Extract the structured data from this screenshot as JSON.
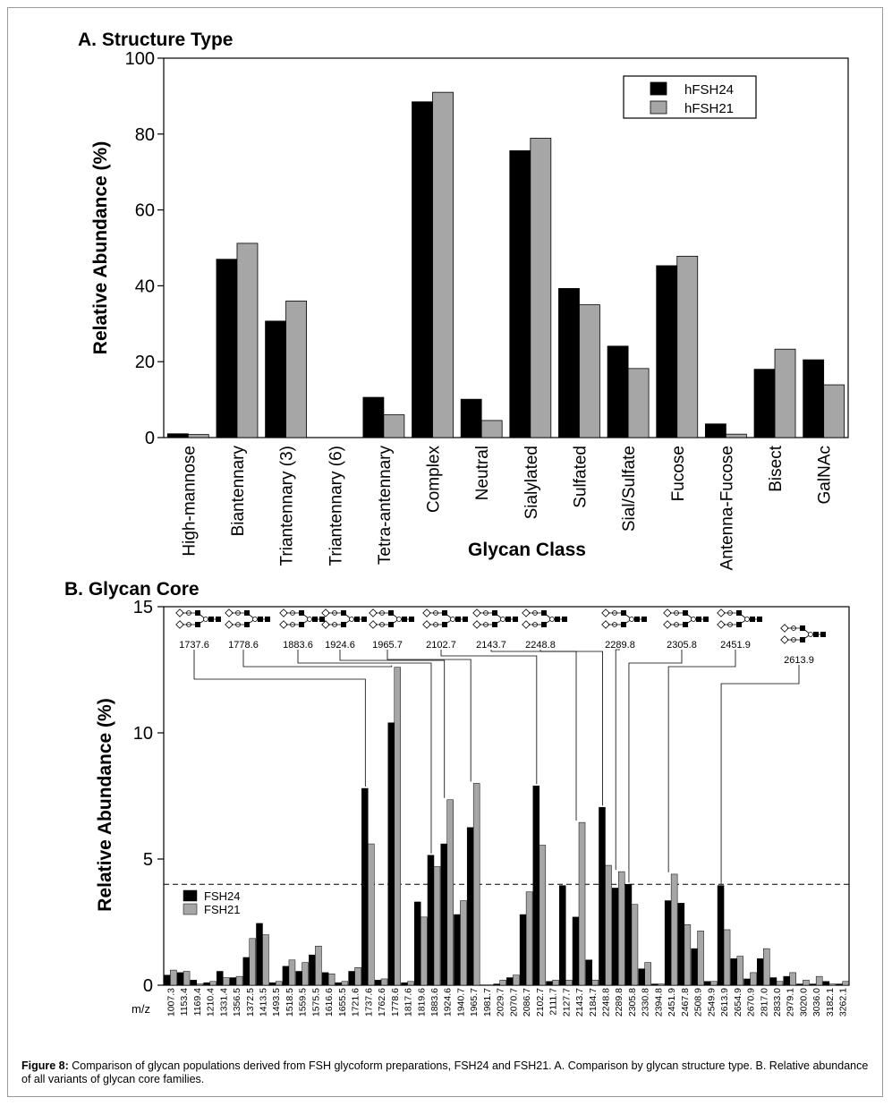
{
  "caption": {
    "label": "Figure 8:",
    "text": "Comparison of glycan populations derived from FSH glycoform preparations, FSH24 and FSH21. A. Comparison by glycan structure type. B. Relative abundance of all variants of glycan core families."
  },
  "colors": {
    "series1": "#000000",
    "series2": "#a6a6a6",
    "axis": "#000000"
  },
  "chart_data": [
    {
      "type": "bar",
      "title": "A. Structure Type",
      "xlabel": "Glycan Class",
      "ylabel": "Relative Abundance (%)",
      "ylim": [
        0,
        100
      ],
      "yticks": [
        "0",
        "20",
        "40",
        "60",
        "80",
        "100"
      ],
      "legend_position": "top-right",
      "categories": [
        "High-mannose",
        "Biantennary",
        "Triantennary (3)",
        "Triantennary (6)",
        "Tetra-antennary",
        "Complex",
        "Neutral",
        "Sialylated",
        "Sulfated",
        "Sial/Sulfate",
        "Fucose",
        "Antenna-Fucose",
        "Bisect",
        "GalNAc"
      ],
      "series": [
        {
          "name": "hFSH24",
          "values": [
            1.0,
            47.0,
            30.7,
            0,
            10.6,
            88.5,
            10.1,
            75.6,
            39.3,
            24.1,
            45.3,
            3.6,
            18.0,
            20.5
          ]
        },
        {
          "name": "hFSH21",
          "values": [
            0.8,
            51.2,
            36.0,
            0,
            6.0,
            91.0,
            4.5,
            78.9,
            35.0,
            18.2,
            47.8,
            0.9,
            23.3,
            13.9
          ]
        }
      ]
    },
    {
      "type": "bar",
      "title": "B. Glycan Core",
      "xlabel": "m/z",
      "ylabel": "Relative Abundance (%)",
      "ylim": [
        0,
        15
      ],
      "yticks": [
        "0",
        "5",
        "10",
        "15"
      ],
      "threshold": 4,
      "legend_position": "left",
      "categories": [
        "1007.3",
        "1153.4",
        "1169.4",
        "1210.4",
        "1331.4",
        "1356.5",
        "1372.5",
        "1413.5",
        "1493.5",
        "1518.5",
        "1559.5",
        "1575.5",
        "1616.6",
        "1655.5",
        "1721.6",
        "1737.6",
        "1762.6",
        "1778.6",
        "1817.6",
        "1819.6",
        "1883.6",
        "1924.6",
        "1940.7",
        "1965.7",
        "1981.7",
        "2029.7",
        "2070.7",
        "2086.7",
        "2102.7",
        "2111.7",
        "2127.7",
        "2143.7",
        "2184.7",
        "2248.8",
        "2289.8",
        "2305.8",
        "2330.8",
        "2394.8",
        "2451.9",
        "2467.8",
        "2508.9",
        "2549.9",
        "2613.9",
        "2654.9",
        "2670.9",
        "2817.0",
        "2833.0",
        "2979.1",
        "3020.0",
        "3036.0",
        "3182.1",
        "3262.1"
      ],
      "series": [
        {
          "name": "FSH24",
          "values": [
            0.4,
            0.5,
            0.2,
            0.1,
            0.55,
            0.3,
            1.1,
            2.45,
            0.1,
            0.75,
            0.55,
            1.2,
            0.5,
            0.1,
            0.55,
            7.8,
            0.2,
            10.4,
            0.1,
            3.3,
            5.15,
            5.6,
            2.8,
            6.25,
            0.0,
            0.05,
            0.3,
            2.8,
            7.9,
            0.15,
            3.95,
            2.7,
            1.0,
            7.05,
            3.85,
            4.0,
            0.65,
            0.05,
            3.35,
            3.25,
            1.45,
            0.15,
            3.95,
            1.05,
            0.25,
            1.05,
            0.3,
            0.35,
            0.05,
            0.05,
            0.15,
            0.05
          ]
        },
        {
          "name": "FSH21",
          "values": [
            0.6,
            0.55,
            0.05,
            0.15,
            0.3,
            0.35,
            1.85,
            2.0,
            0.15,
            1.0,
            0.9,
            1.55,
            0.45,
            0.15,
            0.7,
            5.6,
            0.25,
            12.6,
            0.15,
            2.7,
            4.7,
            7.35,
            3.35,
            8.0,
            0.0,
            0.2,
            0.4,
            3.7,
            5.55,
            0.2,
            0.2,
            6.45,
            0.2,
            4.75,
            4.5,
            3.2,
            0.9,
            0.05,
            4.4,
            2.4,
            2.15,
            0.15,
            2.2,
            1.15,
            0.5,
            1.45,
            0.15,
            0.5,
            0.2,
            0.35,
            0.05,
            0.15
          ]
        }
      ],
      "annotations": [
        "1737.6",
        "1778.6",
        "1883.6",
        "1924.6",
        "1965.7",
        "2102.7",
        "2143.7",
        "2248.8",
        "2289.8",
        "2305.8",
        "2451.9",
        "2613.9"
      ]
    }
  ]
}
